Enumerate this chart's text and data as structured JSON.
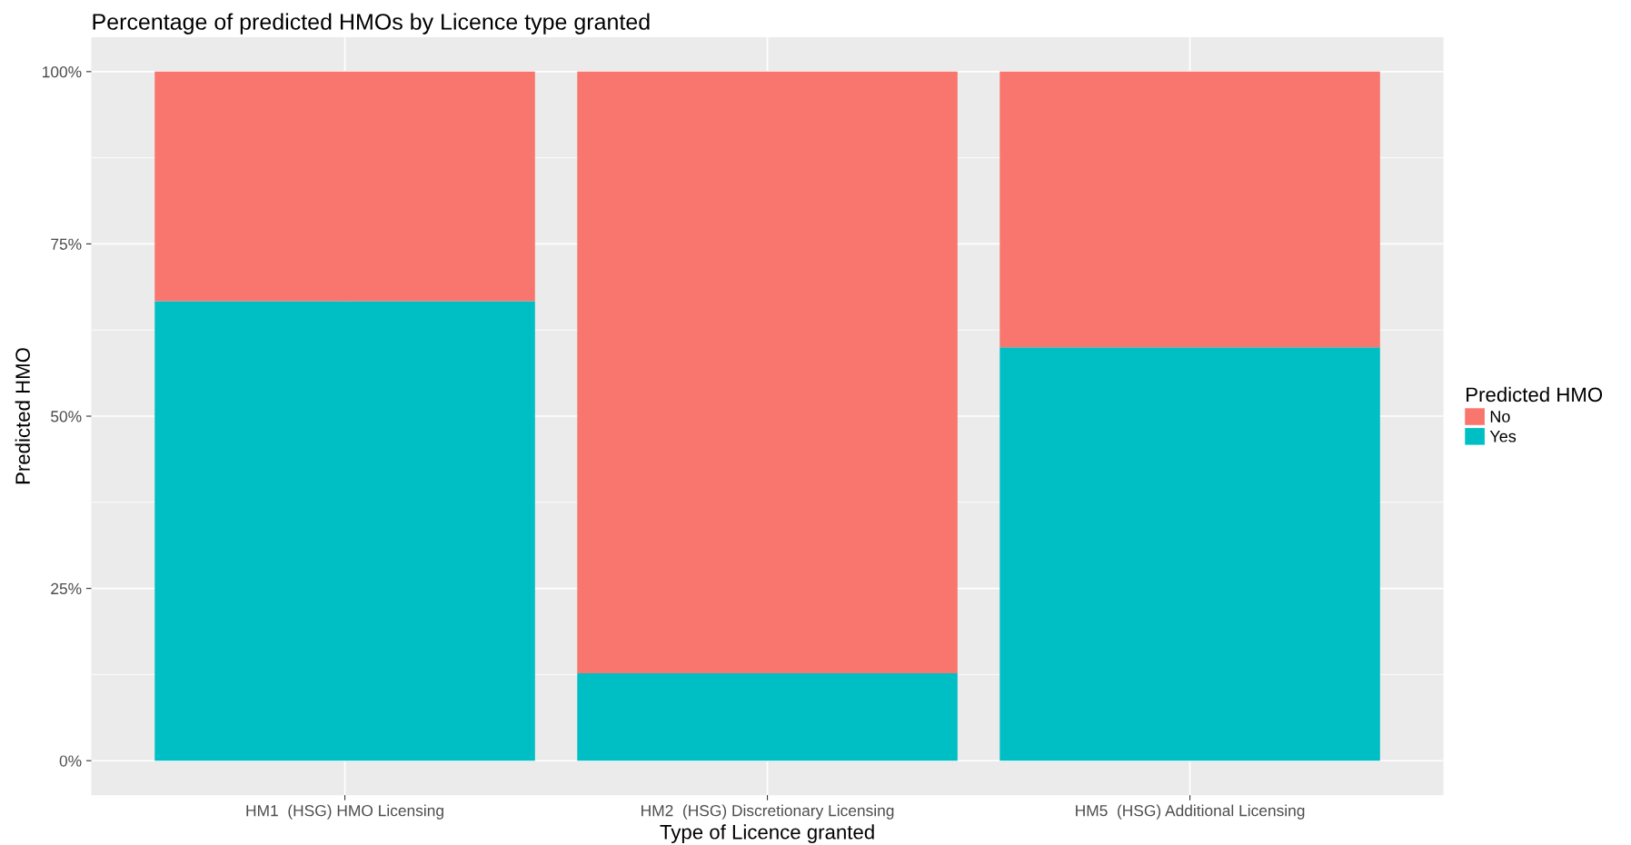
{
  "chart_data": {
    "type": "bar",
    "title": "Percentage of predicted HMOs by Licence type granted",
    "xlabel": "Type of Licence granted",
    "ylabel": "Predicted HMO",
    "legend_title": "Predicted HMO",
    "categories": [
      "HM1  (HSG) HMO Licensing",
      "HM2  (HSG) Discretionary Licensing",
      "HM5  (HSG) Additional Licensing"
    ],
    "stacked": true,
    "series": [
      {
        "name": "Yes",
        "color": "#00bfc4",
        "values": [
          66.7,
          12.7,
          60.0
        ]
      },
      {
        "name": "No",
        "color": "#f8766d",
        "values": [
          33.3,
          87.3,
          40.0
        ]
      }
    ],
    "ylim": [
      -5,
      105
    ],
    "yticks": [
      {
        "value": 0,
        "label": "0%"
      },
      {
        "value": 25,
        "label": "25%"
      },
      {
        "value": 50,
        "label": "50%"
      },
      {
        "value": 75,
        "label": "75%"
      },
      {
        "value": 100,
        "label": "100%"
      }
    ],
    "grid": true,
    "legend": "right"
  }
}
